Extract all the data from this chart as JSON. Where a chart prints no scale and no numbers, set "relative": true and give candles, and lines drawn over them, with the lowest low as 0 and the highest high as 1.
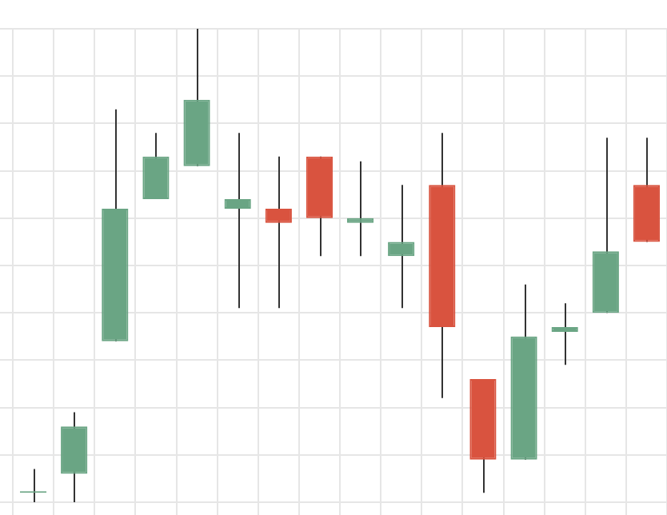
{
  "chart_data": {
    "type": "candlestick",
    "relative": true,
    "grid": true,
    "legend": false,
    "tick_labels": false,
    "categories": [
      null,
      null,
      null,
      null,
      null,
      null,
      null,
      null,
      null,
      null,
      null,
      null,
      null,
      null,
      null,
      null
    ],
    "ohlc": [
      [
        0.02,
        0.07,
        0,
        0.02
      ],
      [
        0.06,
        0.19,
        0,
        0.16
      ],
      [
        0.34,
        0.83,
        0.34,
        0.62
      ],
      [
        0.64,
        0.78,
        0.64,
        0.73
      ],
      [
        0.71,
        1,
        0.71,
        0.85
      ],
      [
        0.62,
        0.78,
        0.41,
        0.64
      ],
      [
        0.62,
        0.73,
        0.41,
        0.59
      ],
      [
        0.73,
        0.73,
        0.52,
        0.6
      ],
      [
        0.59,
        0.72,
        0.52,
        0.6
      ],
      [
        0.52,
        0.67,
        0.41,
        0.55
      ],
      [
        0.67,
        0.78,
        0.22,
        0.37
      ],
      [
        0.26,
        0.26,
        0.02,
        0.09
      ],
      [
        0.09,
        0.46,
        0.09,
        0.35
      ],
      [
        0.36,
        0.42,
        0.29,
        0.37
      ],
      [
        0.4,
        0.77,
        0.4,
        0.53
      ],
      [
        0.67,
        0.77,
        0.55,
        0.55
      ]
    ],
    "colors": [
      "#6aa584",
      "#6aa584",
      "#6aa584",
      "#6aa584",
      "#6aa584",
      "#6aa584",
      "#d9533f",
      "#d9533f",
      "#6aa584",
      "#6aa584",
      "#d9533f",
      "#d9533f",
      "#6aa584",
      "#6aa584",
      "#6aa584",
      "#d9533f"
    ]
  }
}
